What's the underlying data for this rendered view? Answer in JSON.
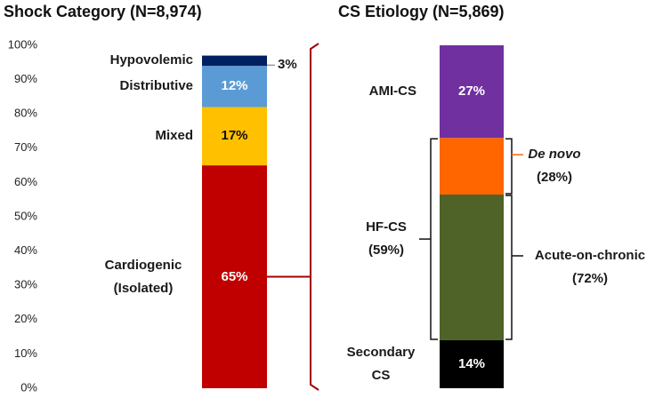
{
  "chart_data": [
    {
      "type": "stacked_bar",
      "title": "Shock Category (N=8,974)",
      "ylim": [
        0,
        100
      ],
      "yticks": [
        {
          "value": 0,
          "label": "0%"
        },
        {
          "value": 10,
          "label": "10%"
        },
        {
          "value": 20,
          "label": "20%"
        },
        {
          "value": 30,
          "label": "30%"
        },
        {
          "value": 40,
          "label": "40%"
        },
        {
          "value": 50,
          "label": "50%"
        },
        {
          "value": 60,
          "label": "60%"
        },
        {
          "value": 70,
          "label": "70%"
        },
        {
          "value": 80,
          "label": "80%"
        },
        {
          "value": 90,
          "label": "90%"
        },
        {
          "value": 100,
          "label": "100%"
        }
      ],
      "series": [
        {
          "name": "Cardiogenic (Isolated)",
          "color": "#c00000",
          "values": [
            65
          ],
          "value_labels": [
            "65%"
          ]
        },
        {
          "name": "Mixed",
          "color": "#ffc000",
          "values": [
            17
          ],
          "value_labels": [
            "17%"
          ]
        },
        {
          "name": "Distributive",
          "color": "#5b9bd5",
          "values": [
            12
          ],
          "value_labels": [
            "12%"
          ]
        },
        {
          "name": "Hypovolemic",
          "color": "#002060",
          "values": [
            3
          ],
          "value_labels": [
            "3%"
          ]
        }
      ]
    },
    {
      "type": "stacked_bar",
      "title": "CS Etiology (N=5,869)",
      "ylim": [
        0,
        100
      ],
      "series": [
        {
          "name": "Secondary CS",
          "color": "#000000",
          "values": [
            14
          ],
          "value_labels": [
            "14%"
          ]
        },
        {
          "name": "HF-CS",
          "values": [
            59
          ],
          "value_labels": [
            "(59%)"
          ],
          "subseries": [
            {
              "name": "Acute-on-chronic",
              "color": "#4f6228",
              "values": [
                72
              ],
              "value_labels": [
                "(72%)"
              ]
            },
            {
              "name": "De novo",
              "color": "#ff6600",
              "values": [
                28
              ],
              "value_labels": [
                "(28%)"
              ]
            }
          ]
        },
        {
          "name": "AMI-CS",
          "color": "#7030a0",
          "values": [
            27
          ],
          "value_labels": [
            "27%"
          ]
        }
      ]
    }
  ]
}
